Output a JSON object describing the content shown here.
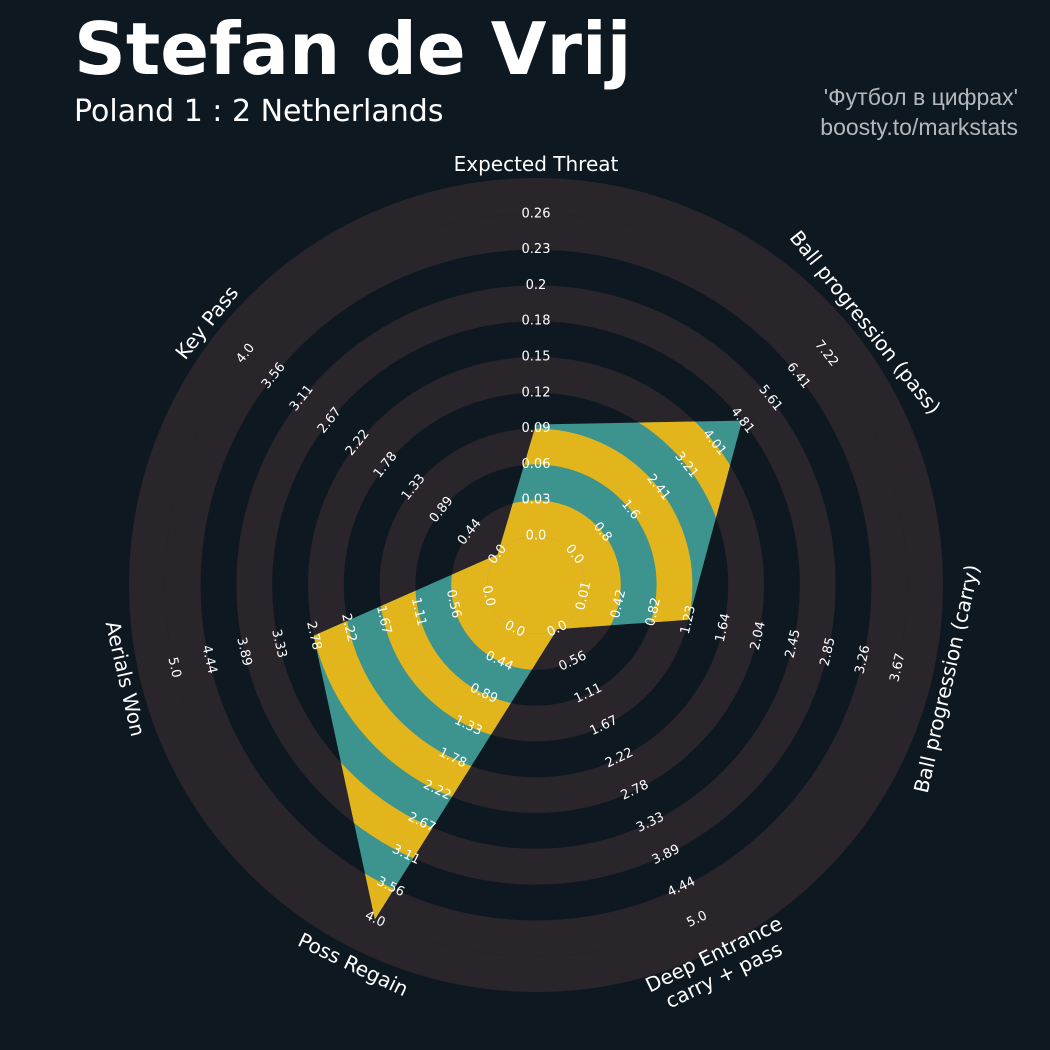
{
  "header": {
    "title": "Stefan de Vrij",
    "subtitle": "Poland 1 : 2 Netherlands",
    "credit_line1": "'Футбол в цифрах'",
    "credit_line2": "boosty.to/markstats"
  },
  "colors": {
    "background": "#0e1820",
    "ring": "#29252b",
    "teal": "#3d948e",
    "gold": "#e3b51c",
    "text": "#ffffff",
    "credit": "#b4b8bc"
  },
  "chart_data": {
    "type": "radar",
    "title": "Stefan de Vrij",
    "subtitle": "Poland 1 : 2 Netherlands",
    "grid": true,
    "params": [
      {
        "label": "Expected Threat",
        "label2": "",
        "ticks": [
          "0.0",
          "0.03",
          "0.06",
          "0.09",
          "0.12",
          "0.15",
          "0.18",
          "0.2",
          "0.23",
          "0.26"
        ],
        "value": 0.09
      },
      {
        "label": "Ball progression (pass)",
        "label2": "",
        "ticks": [
          "0.0",
          "0.8",
          "1.6",
          "2.41",
          "3.21",
          "4.01",
          "4.81",
          "5.61",
          "6.41",
          "7.22"
        ],
        "value": 4.81
      },
      {
        "label": "Ball progression (carry)",
        "label2": "",
        "ticks": [
          "0.01",
          "0.42",
          "0.82",
          "1.23",
          "1.64",
          "2.04",
          "2.45",
          "2.85",
          "3.26",
          "3.67"
        ],
        "value": 1.23
      },
      {
        "label": "Deep Entrance",
        "label2": "carry + pass",
        "ticks": [
          "0.0",
          "0.56",
          "1.11",
          "1.67",
          "2.22",
          "2.78",
          "3.33",
          "3.89",
          "4.44",
          "5.0"
        ],
        "value": 0.0
      },
      {
        "label": "Poss Regain",
        "label2": "",
        "ticks": [
          "0.0",
          "0.44",
          "0.89",
          "1.33",
          "1.78",
          "2.22",
          "2.67",
          "3.11",
          "3.56",
          "4.0"
        ],
        "value": 4.0
      },
      {
        "label": "Aerials Won",
        "label2": "",
        "ticks": [
          "0.0",
          "0.56",
          "1.11",
          "1.67",
          "2.22",
          "2.78",
          "3.33",
          "3.89",
          "4.44",
          "5.0"
        ],
        "value": 2.78
      },
      {
        "label": "Key Pass",
        "label2": "",
        "ticks": [
          "0.0",
          "0.44",
          "0.89",
          "1.33",
          "1.78",
          "2.22",
          "2.67",
          "3.11",
          "3.56",
          "4.0"
        ],
        "value": 0.0
      }
    ]
  }
}
